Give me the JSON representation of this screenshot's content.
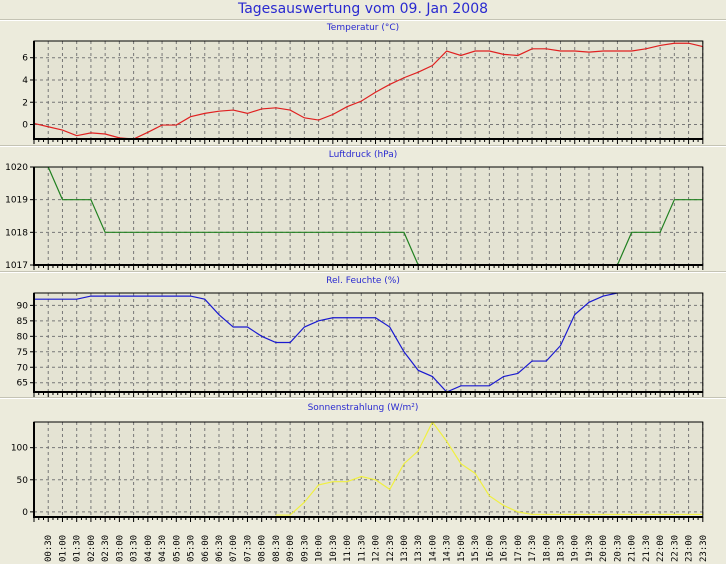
{
  "title": "Tagesauswertung vom 09. Jan 2008",
  "chart_data": [
    {
      "type": "line",
      "title": "Temperatur (°C)",
      "color": "#e02020",
      "ylim": [
        -1.3,
        7.5
      ],
      "yticks": [
        0,
        2,
        4,
        6
      ],
      "ytick_labels": [
        "0",
        "2",
        "4",
        "6"
      ],
      "values": [
        0.1,
        -0.2,
        -0.5,
        -1.0,
        -0.75,
        -0.85,
        -1.2,
        -1.3,
        -0.7,
        -0.05,
        -0.05,
        0.7,
        1.0,
        1.2,
        1.3,
        1.0,
        1.4,
        1.5,
        1.3,
        0.6,
        0.4,
        0.9,
        1.6,
        2.1,
        2.9,
        3.6,
        4.2,
        4.7,
        5.3,
        6.6,
        6.2,
        6.6,
        6.6,
        6.3,
        6.2,
        6.8,
        6.8,
        6.6,
        6.6,
        6.5,
        6.6,
        6.6,
        6.6,
        6.8,
        7.1,
        7.3,
        7.3,
        7.0
      ]
    },
    {
      "type": "line",
      "title": "Luftdruck (hPa)",
      "color": "#208020",
      "ylim": [
        1017,
        1020
      ],
      "yticks": [
        1017,
        1018,
        1019,
        1020
      ],
      "ytick_labels": [
        "1017",
        "1018",
        "1019",
        "1020"
      ],
      "values": [
        1020,
        1020,
        1019,
        1019,
        1019,
        1018,
        1018,
        1018,
        1018,
        1018,
        1018,
        1018,
        1018,
        1018,
        1018,
        1018,
        1018,
        1018,
        1018,
        1018,
        1018,
        1018,
        1018,
        1018,
        1018,
        1018,
        1018,
        1017,
        1017,
        1017,
        1017,
        1017,
        1017,
        1017,
        1017,
        1017,
        1017,
        1017,
        1017,
        1017,
        1017,
        1017,
        1018,
        1018,
        1018,
        1019,
        1019,
        1019
      ]
    },
    {
      "type": "line",
      "title": "Rel. Feuchte (%)",
      "color": "#1a1ad0",
      "ylim": [
        62,
        94
      ],
      "yticks": [
        65,
        70,
        75,
        80,
        85,
        90
      ],
      "ytick_labels": [
        "65",
        "70",
        "75",
        "80",
        "85",
        "90"
      ],
      "values": [
        92,
        92,
        92,
        92,
        93,
        93,
        93,
        93,
        93,
        93,
        93,
        93,
        92,
        87,
        83,
        83,
        80,
        78,
        78,
        83,
        85,
        86,
        86,
        86,
        86,
        83,
        75,
        69,
        67,
        62,
        64,
        64,
        64,
        67,
        68,
        72,
        72,
        77,
        87,
        91,
        93,
        94,
        null,
        null,
        null,
        null,
        null,
        null
      ]
    },
    {
      "type": "line",
      "title": "Sonnenstrahlung (W/m²)",
      "color": "#f0f040",
      "ylim": [
        -8,
        140
      ],
      "yticks": [
        0,
        50,
        100
      ],
      "ytick_labels": [
        "0",
        "50",
        "100"
      ],
      "values": [
        null,
        null,
        null,
        null,
        null,
        null,
        null,
        null,
        null,
        null,
        null,
        null,
        null,
        null,
        null,
        null,
        null,
        -5,
        -5,
        15,
        42,
        47,
        47,
        55,
        50,
        35,
        75,
        95,
        140,
        110,
        75,
        60,
        25,
        10,
        0,
        -4,
        -4,
        -4,
        -4,
        -4,
        -4,
        -4,
        -4,
        -4,
        -4,
        -4,
        -4,
        -4
      ]
    }
  ],
  "x_start": "00:00",
  "x_step_minutes": 30,
  "xtick_labels": [
    "00:30",
    "01:00",
    "01:30",
    "02:00",
    "02:30",
    "03:00",
    "03:30",
    "04:00",
    "04:30",
    "05:00",
    "05:30",
    "06:00",
    "06:30",
    "07:00",
    "07:30",
    "08:00",
    "08:30",
    "09:00",
    "09:30",
    "10:00",
    "10:30",
    "11:00",
    "11:30",
    "12:00",
    "12:30",
    "13:00",
    "13:30",
    "14:00",
    "14:30",
    "15:00",
    "15:30",
    "16:00",
    "16:30",
    "17:00",
    "17:30",
    "18:00",
    "18:30",
    "19:00",
    "19:30",
    "20:00",
    "20:30",
    "21:00",
    "21:30",
    "22:00",
    "22:30",
    "23:00",
    "23:30"
  ]
}
